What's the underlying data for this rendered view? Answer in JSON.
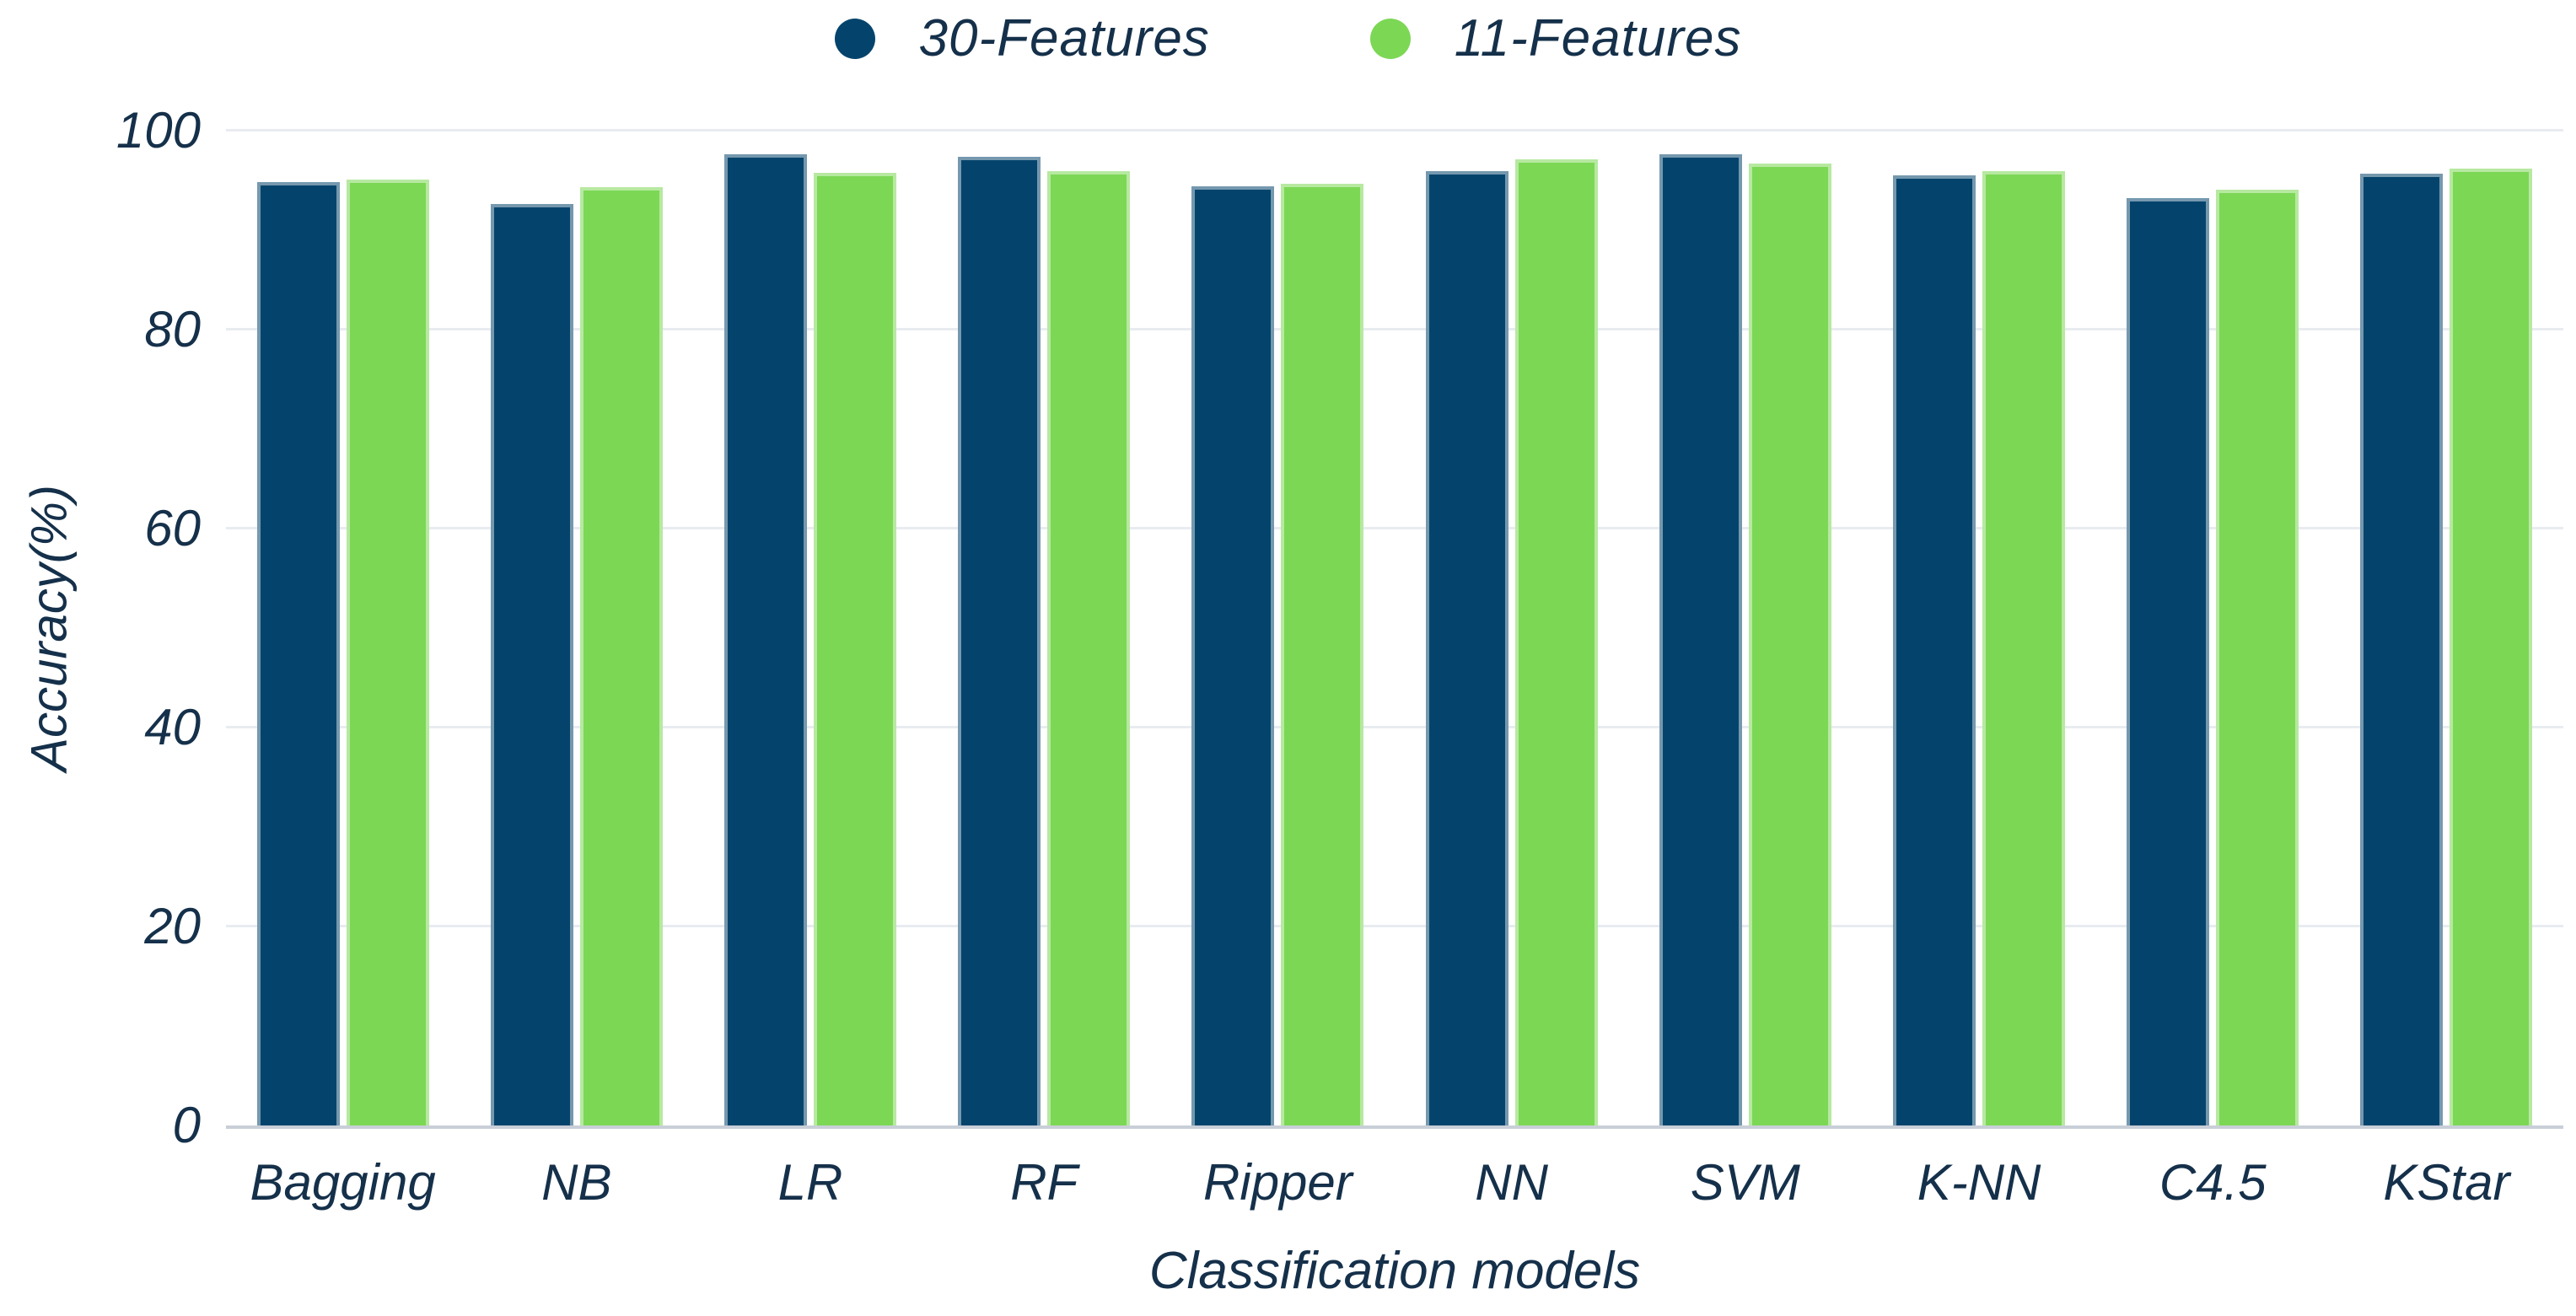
{
  "colors": {
    "series_30_features": "#04446C",
    "series_11_features": "#7CD755",
    "text": "#15304A",
    "gridline": "#E8ECF0",
    "baseline": "#C9CFD8",
    "background": "#FFFFFF"
  },
  "chart_data": {
    "type": "bar",
    "title": "",
    "xlabel": "Classification models",
    "ylabel": "Accuracy(%)",
    "ylim": [
      0,
      100
    ],
    "yticks": [
      0,
      20,
      40,
      60,
      80,
      100
    ],
    "grid": "horizontal",
    "legend_position": "top-center",
    "categories": [
      "Bagging",
      "NB",
      "LR",
      "RF",
      "Ripper",
      "NN",
      "SVM",
      "K-NN",
      "C4.5",
      "KStar"
    ],
    "series": [
      {
        "name": "30-Features",
        "color": "#04446C",
        "values": [
          94.8,
          92.6,
          97.6,
          97.4,
          94.4,
          95.9,
          97.6,
          95.5,
          93.2,
          95.7
        ]
      },
      {
        "name": "11-Features",
        "color": "#7CD755",
        "values": [
          95.1,
          94.3,
          95.8,
          95.9,
          94.7,
          97.1,
          96.7,
          95.9,
          94.1,
          96.2
        ]
      }
    ]
  }
}
